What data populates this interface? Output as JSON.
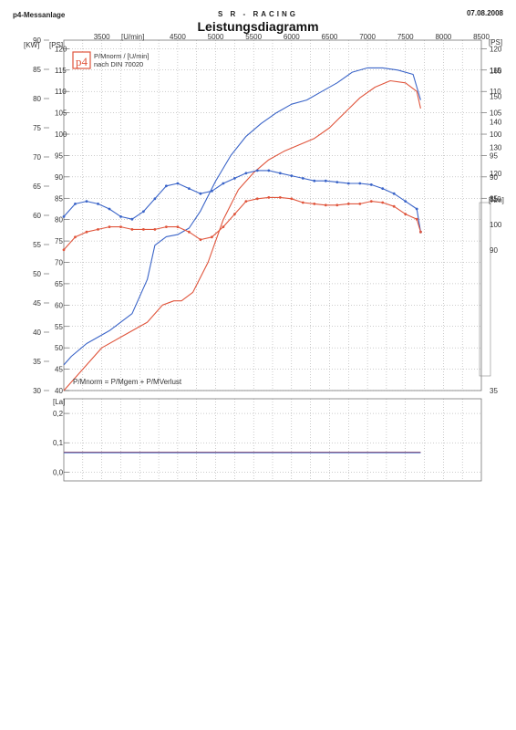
{
  "header": {
    "left": "p4-Messanlage",
    "center": "S R - RACING",
    "right": "07.08.2008"
  },
  "legend": {
    "logo": "p4",
    "line1": "P/Mnorm / [U/min]",
    "line2": "nach DIN 70020"
  },
  "formula": "P/Mnorm = P/Mgem + P/MVerlust",
  "colors": {
    "blue": "#3a64c8",
    "red": "#e0553c",
    "grid": "#9a9a9a"
  },
  "chart_data": [
    {
      "type": "line",
      "title": "Leistungsdiagramm",
      "xlabel": "[U/min]",
      "x_ticks": [
        3500,
        4500,
        5000,
        5500,
        6000,
        6500,
        7000,
        7500,
        8000,
        8500
      ],
      "xlim": [
        3000,
        8500
      ],
      "grid": true,
      "axes": {
        "kw": {
          "label": "[KW]",
          "range": [
            30,
            90
          ],
          "ticks": [
            30,
            35,
            40,
            45,
            50,
            55,
            60,
            65,
            70,
            75,
            80,
            85,
            90
          ]
        },
        "ps": {
          "label": "[PS]",
          "range": [
            40,
            122
          ],
          "ticks": [
            40,
            45,
            50,
            55,
            60,
            65,
            70,
            75,
            80,
            85,
            90,
            95,
            100,
            105,
            110,
            115,
            120
          ]
        },
        "ps_right": {
          "label": "[PS]",
          "ticks": [
            85,
            90,
            95,
            100,
            105,
            110,
            115,
            120
          ]
        },
        "nm": {
          "label": "[Nm]",
          "range": [
            35,
            172
          ],
          "ticks": [
            35,
            90,
            100,
            110,
            120,
            130,
            140,
            150,
            160
          ]
        }
      },
      "series": [
        {
          "name": "",
          "color": "#3a64c8",
          "axis": "ps",
          "markers": false,
          "x": [
            3000,
            3100,
            3300,
            3600,
            3900,
            4100,
            4200,
            4350,
            4500,
            4650,
            4800,
            5000,
            5200,
            5400,
            5600,
            5800,
            6000,
            6200,
            6400,
            6600,
            6800,
            7000,
            7200,
            7400,
            7600,
            7700
          ],
          "y": [
            46,
            48,
            51,
            54,
            58,
            66,
            74,
            76,
            76.5,
            78,
            82,
            89,
            95,
            99.5,
            102.5,
            105,
            107,
            108,
            110,
            112,
            114.5,
            115.5,
            115.5,
            115,
            114,
            108
          ]
        },
        {
          "name": "",
          "color": "#e0553c",
          "axis": "ps",
          "markers": false,
          "x": [
            3000,
            3200,
            3500,
            3800,
            4100,
            4300,
            4450,
            4550,
            4700,
            4900,
            5100,
            5300,
            5500,
            5700,
            5900,
            6100,
            6300,
            6500,
            6700,
            6900,
            7100,
            7300,
            7500,
            7650,
            7700
          ],
          "y": [
            40,
            44,
            50,
            53,
            56,
            60,
            61,
            61,
            63,
            70,
            80,
            87,
            91,
            94,
            96,
            97.5,
            99,
            101.5,
            105,
            108.5,
            111,
            112.5,
            112,
            110,
            106
          ]
        },
        {
          "name": "",
          "color": "#3a64c8",
          "axis": "nm",
          "markers": true,
          "x": [
            3000,
            3150,
            3300,
            3450,
            3600,
            3750,
            3900,
            4050,
            4200,
            4350,
            4500,
            4650,
            4800,
            4950,
            5100,
            5250,
            5400,
            5550,
            5700,
            5850,
            6000,
            6150,
            6300,
            6450,
            6600,
            6750,
            6900,
            7050,
            7200,
            7350,
            7500,
            7650,
            7700
          ],
          "y": [
            103,
            108,
            109,
            108,
            106,
            103,
            102,
            105,
            110,
            115,
            116,
            114,
            112,
            113,
            116,
            118,
            120,
            121,
            121,
            120,
            119,
            118,
            117,
            117,
            116.5,
            116,
            116,
            115.5,
            114,
            112,
            109,
            106,
            97
          ]
        },
        {
          "name": "",
          "color": "#e0553c",
          "axis": "nm",
          "markers": true,
          "x": [
            3000,
            3150,
            3300,
            3450,
            3600,
            3750,
            3900,
            4050,
            4200,
            4350,
            4500,
            4650,
            4800,
            4950,
            5100,
            5250,
            5400,
            5550,
            5700,
            5850,
            6000,
            6150,
            6300,
            6450,
            6600,
            6750,
            6900,
            7050,
            7200,
            7350,
            7500,
            7650,
            7700
          ],
          "y": [
            90,
            95,
            97,
            98,
            99,
            99,
            98,
            98,
            98,
            99,
            99,
            97,
            94,
            95,
            99,
            104,
            109,
            110,
            110.5,
            110.5,
            110,
            108.5,
            108,
            107.5,
            107.5,
            108,
            108,
            109,
            108.5,
            107,
            104,
            102,
            97
          ]
        }
      ]
    },
    {
      "type": "line",
      "ylabel": "[La]",
      "ylim": [
        -0.03,
        0.25
      ],
      "y_ticks": [
        0.0,
        0.1,
        0.2
      ],
      "y_tick_labels": [
        "0,0",
        "0,1",
        "0,2"
      ],
      "xlim": [
        3000,
        8500
      ],
      "grid": true,
      "series": [
        {
          "name": "",
          "color": "#e0553c",
          "x": [
            3000,
            7700
          ],
          "y": [
            0.068,
            0.068
          ]
        },
        {
          "name": "",
          "color": "#3a64c8",
          "x": [
            3000,
            7700
          ],
          "y": [
            0.066,
            0.066
          ]
        }
      ]
    }
  ]
}
